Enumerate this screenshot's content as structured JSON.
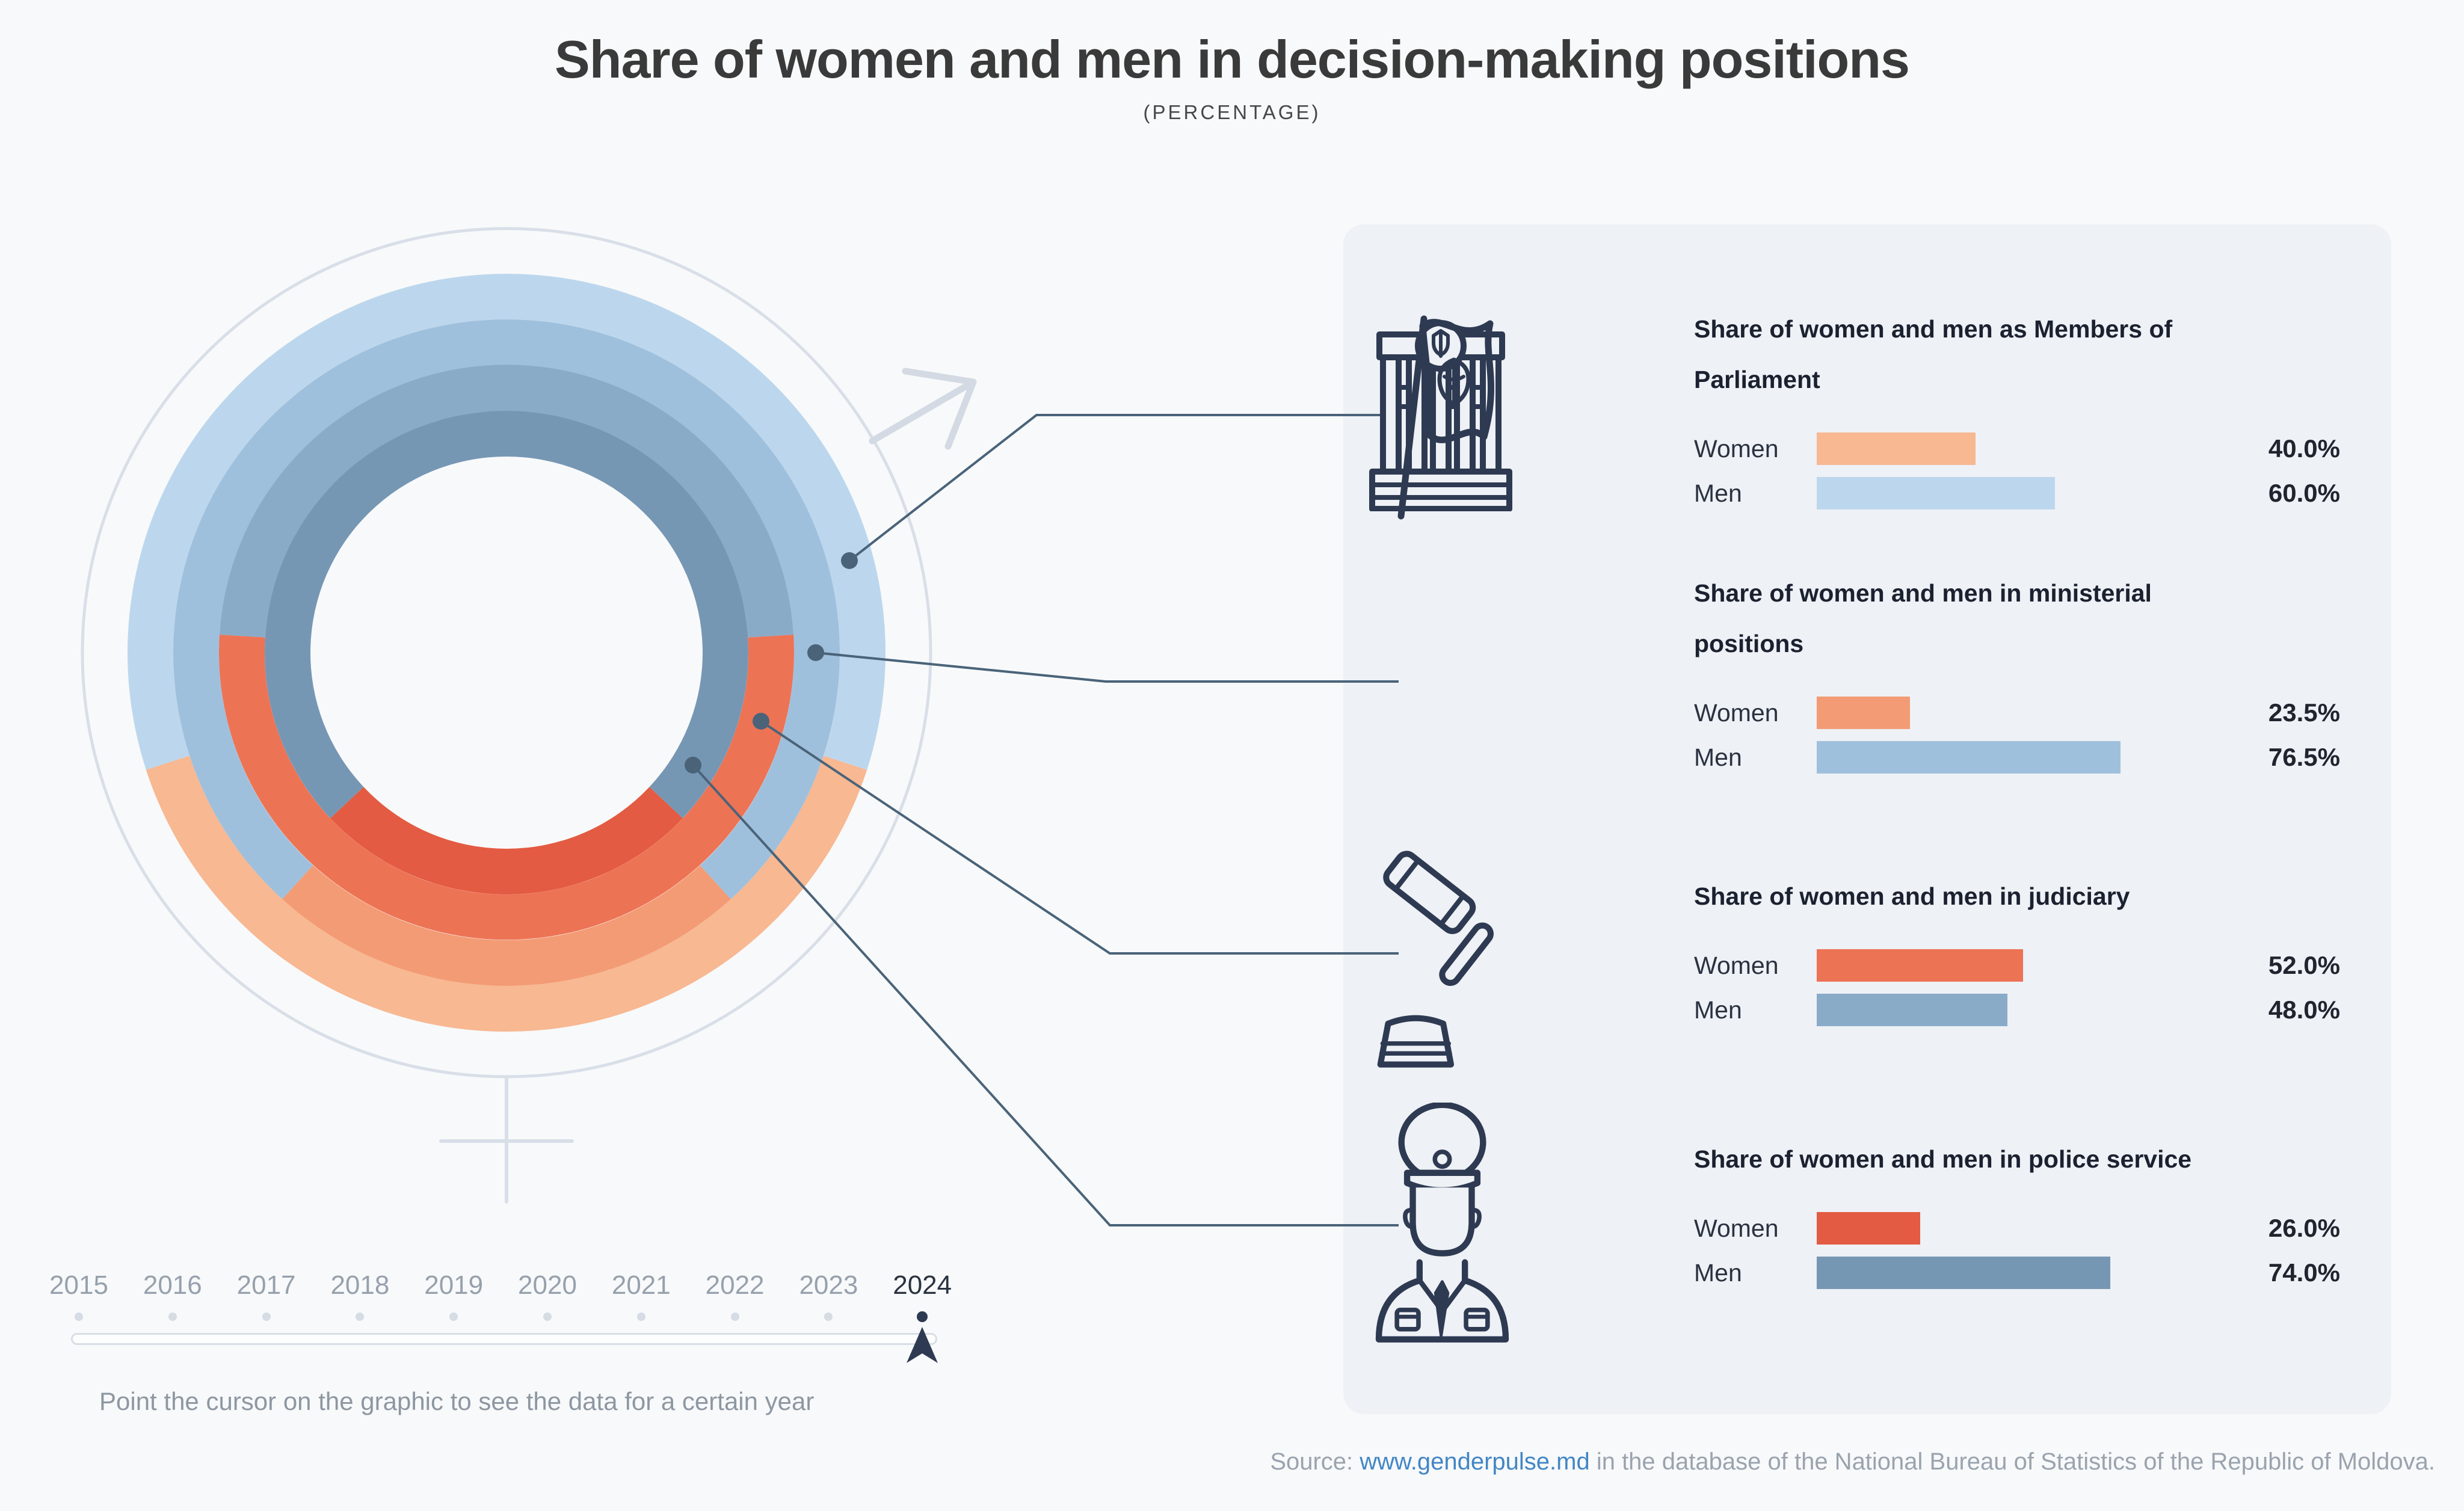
{
  "title": "Share of women and men in decision-making positions",
  "subtitle": "(PERCENTAGE)",
  "chart_data": {
    "type": "donut-rings",
    "description": "Four concentric rings (outer to inner); each ring splits into a women arc (centered at bottom) and men arc by percentage",
    "selected_year": "2024",
    "rings_order": "outer_to_inner",
    "legend": {
      "women_label": "Women",
      "men_label": "Men"
    },
    "categories": [
      {
        "id": "parliament",
        "icon": "parliament-building-icon",
        "label": "Share of women and men as Members of Parliament",
        "women": 40.0,
        "men": 60.0,
        "women_display": "40.0%",
        "men_display": "60.0%",
        "women_color": "#f7b892",
        "men_color": "#bcd7ed"
      },
      {
        "id": "ministerial",
        "icon": "moldova-flag-icon",
        "label": "Share of women and men in ministerial positions",
        "women": 23.5,
        "men": 76.5,
        "women_display": "23.5%",
        "men_display": "76.5%",
        "women_color": "#f39b74",
        "men_color": "#9fc0dc"
      },
      {
        "id": "judiciary",
        "icon": "gavel-icon",
        "label": "Share of women and men in judiciary",
        "women": 52.0,
        "men": 48.0,
        "women_display": "52.0%",
        "men_display": "48.0%",
        "women_color": "#ed7355",
        "men_color": "#8aabc8"
      },
      {
        "id": "police",
        "icon": "police-officer-icon",
        "label": "Share of women and men in police service",
        "women": 26.0,
        "men": 74.0,
        "women_display": "26.0%",
        "men_display": "74.0%",
        "women_color": "#e35b42",
        "men_color": "#7697b4"
      }
    ]
  },
  "timeline": {
    "years": [
      "2015",
      "2016",
      "2017",
      "2018",
      "2019",
      "2020",
      "2021",
      "2022",
      "2023",
      "2024"
    ],
    "selected": "2024",
    "hint": "Point the cursor on the graphic to see the data for a certain year"
  },
  "source": {
    "prefix": "Source: ",
    "link_text": "www.genderpulse.md",
    "suffix": " in the database of the National Bureau of Statistics of the Republic of Moldova."
  },
  "colors": {
    "page_bg": "#f8f9fa",
    "panel_bg": "#eef1f5",
    "leader_line": "#4a6379",
    "gender_symbol": "#d9dfe8",
    "icon_stroke": "#2e3a52",
    "title_text": "#3a3a3a",
    "year_text": "#97a1ad",
    "year_selected": "#2b3340",
    "muted_text": "#8d97a2",
    "source_text": "#9aa3ae",
    "link": "#4286c5"
  }
}
